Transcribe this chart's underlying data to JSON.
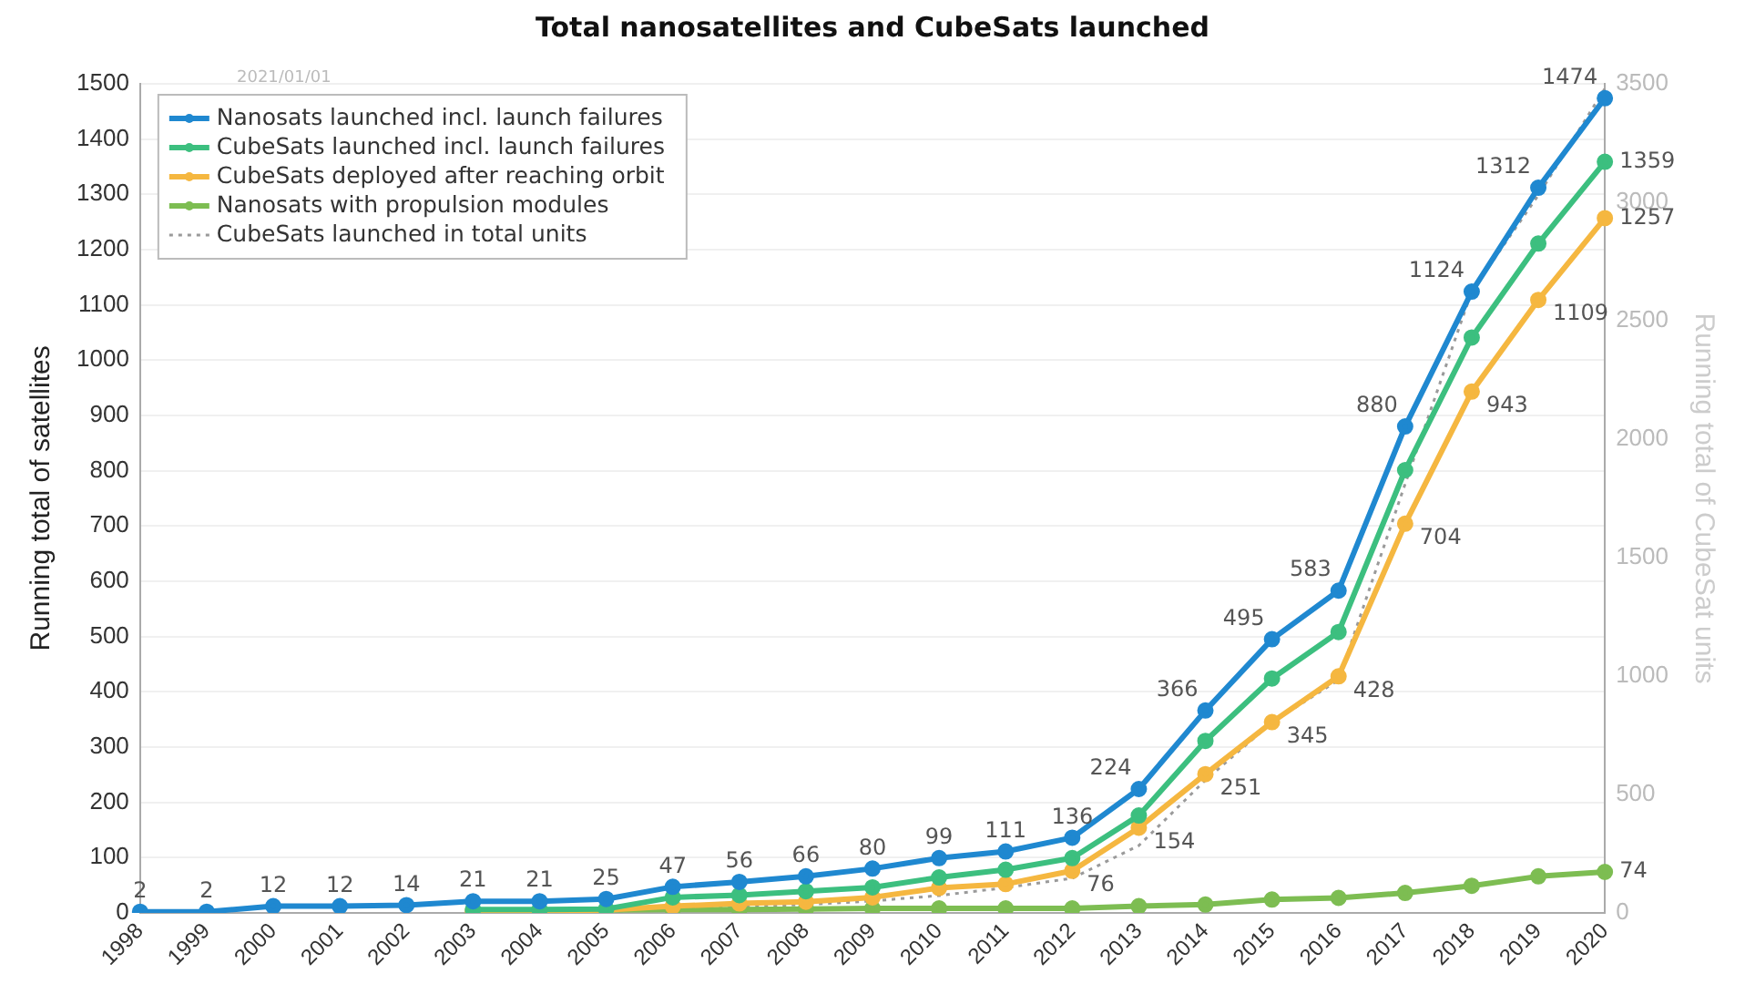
{
  "chart_data": {
    "type": "line",
    "title": "Total nanosatellites and CubeSats launched",
    "xlabel": null,
    "ylabel": "Running total of satellites",
    "y2label": "Running total of CubeSat units",
    "categories": [
      "1998",
      "1999",
      "2000",
      "2001",
      "2002",
      "2003",
      "2004",
      "2005",
      "2006",
      "2007",
      "2008",
      "2009",
      "2010",
      "2011",
      "2012",
      "2013",
      "2014",
      "2015",
      "2016",
      "2017",
      "2018",
      "2019",
      "2020"
    ],
    "series": [
      {
        "name": "Nanosats launched incl. launch failures",
        "color": "#1f88d0",
        "values": [
          2,
          2,
          12,
          12,
          14,
          21,
          21,
          25,
          47,
          56,
          66,
          80,
          99,
          111,
          136,
          224,
          366,
          495,
          583,
          880,
          1124,
          1312,
          1474
        ],
        "value_labels": [
          "2",
          "2",
          "12",
          "12",
          "14",
          "21",
          "21",
          "25",
          "47",
          "56",
          "66",
          "80",
          "99",
          "111",
          "136",
          "224",
          "366",
          "495",
          "583",
          "880",
          "1124",
          "1312",
          "1474"
        ]
      },
      {
        "name": "CubeSats launched incl. launch failures",
        "color": "#3cbf7f",
        "values": [
          null,
          null,
          null,
          null,
          null,
          6,
          6,
          7,
          28,
          32,
          39,
          46,
          64,
          78,
          99,
          176,
          311,
          424,
          508,
          801,
          1041,
          1211,
          1359
        ],
        "value_labels": [
          null,
          null,
          null,
          null,
          null,
          null,
          null,
          null,
          null,
          null,
          null,
          null,
          null,
          null,
          null,
          null,
          null,
          null,
          null,
          null,
          null,
          null,
          "1359"
        ]
      },
      {
        "name": "CubeSats deployed after reaching orbit",
        "color": "#f5b740",
        "values": [
          null,
          null,
          null,
          null,
          null,
          3,
          4,
          5,
          12,
          17,
          20,
          28,
          45,
          52,
          76,
          154,
          251,
          345,
          428,
          704,
          943,
          1109,
          1257
        ],
        "value_labels": [
          null,
          null,
          null,
          null,
          null,
          null,
          null,
          null,
          null,
          null,
          null,
          null,
          null,
          null,
          "76",
          "154",
          "251",
          "345",
          "428",
          "704",
          "943",
          "1109",
          "1257"
        ]
      },
      {
        "name": "Nanosats with propulsion modules",
        "color": "#7dbd52",
        "values": [
          null,
          null,
          null,
          null,
          null,
          3,
          4,
          5,
          6,
          6,
          7,
          8,
          8,
          8,
          8,
          12,
          15,
          24,
          27,
          36,
          49,
          66,
          74
        ],
        "value_labels": [
          null,
          null,
          null,
          null,
          null,
          null,
          null,
          null,
          null,
          null,
          null,
          null,
          null,
          null,
          null,
          null,
          null,
          null,
          null,
          null,
          null,
          null,
          "74"
        ]
      },
      {
        "name": "CubeSats launched in total units",
        "color": "#9a9a9a",
        "axis": "y2",
        "line_style": "dotted",
        "marker": "none",
        "values": [
          null,
          null,
          null,
          null,
          null,
          3,
          3,
          5,
          15,
          25,
          35,
          50,
          73,
          106,
          146,
          284,
          560,
          804,
          983,
          1811,
          2624,
          3030,
          3480
        ]
      }
    ],
    "ylim": [
      0,
      1500
    ],
    "yticks": [
      0,
      100,
      200,
      300,
      400,
      500,
      600,
      700,
      800,
      900,
      1000,
      1100,
      1200,
      1300,
      1400,
      1500
    ],
    "y2lim": [
      0,
      3500
    ],
    "y2ticks": [
      0,
      500,
      1000,
      1500,
      2000,
      2500,
      3000,
      3500
    ],
    "marker": "circle",
    "line_style": "solid",
    "grid": "y",
    "legend": "top left",
    "annotations": [
      "2021/01/01"
    ]
  }
}
